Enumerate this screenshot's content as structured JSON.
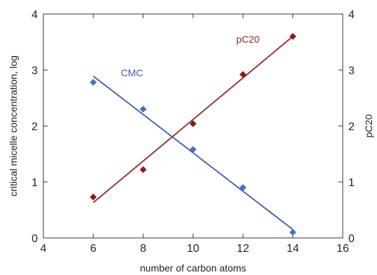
{
  "chart_data": {
    "type": "scatter",
    "xlabel": "number of carbon atoms",
    "ylabel": "critical micelle concentration, log",
    "y2label": "pC20",
    "xlim": [
      4,
      16
    ],
    "ylim": [
      0,
      4
    ],
    "y2lim": [
      0,
      4
    ],
    "xticks": [
      "4",
      "6",
      "8",
      "10",
      "12",
      "14",
      "16"
    ],
    "yticks": [
      "0",
      "1",
      "2",
      "3",
      "4"
    ],
    "y2ticks": [
      "0",
      "1",
      "2",
      "3",
      "4"
    ],
    "grid": false,
    "series": [
      {
        "name": "CMC",
        "color": "#3a5ba8",
        "marker_color": "#4a6fc0",
        "axis": "left",
        "x": [
          6,
          8,
          10,
          12,
          14
        ],
        "y": [
          2.78,
          2.3,
          1.58,
          0.9,
          0.1
        ],
        "fit": {
          "x": [
            6,
            14
          ],
          "y": [
            2.89,
            0.15
          ]
        },
        "label_at": [
          7.55,
          2.95
        ]
      },
      {
        "name": "pC20",
        "color": "#8b2a22",
        "marker_color": "#8b1a1a",
        "axis": "right",
        "x": [
          6,
          8,
          10,
          12,
          14
        ],
        "y": [
          0.73,
          1.22,
          2.04,
          2.92,
          3.6
        ],
        "fit": {
          "x": [
            6,
            14
          ],
          "y": [
            0.63,
            3.6
          ]
        },
        "label_at": [
          12.2,
          3.55
        ]
      }
    ]
  }
}
